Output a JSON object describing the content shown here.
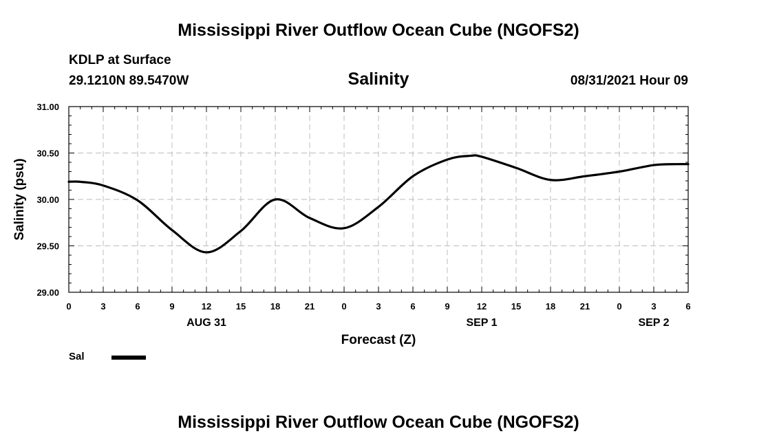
{
  "header": {
    "title": "Mississippi River Outflow Ocean Cube (NGOFS2)",
    "station": "KDLP at Surface",
    "coords": "29.1210N  89.5470W",
    "subtitle": "Salinity",
    "datetime": "08/31/2021 Hour 09"
  },
  "footer": {
    "title": "Mississippi River Outflow Ocean Cube (NGOFS2)"
  },
  "chart_data": {
    "type": "line",
    "title": "Salinity",
    "xlabel": "Forecast (Z)",
    "ylabel": "Salinity (psu)",
    "xlim": [
      0,
      54
    ],
    "ylim": [
      29.0,
      31.0
    ],
    "grid": true,
    "yticks": [
      29.0,
      29.5,
      30.0,
      30.5,
      31.0
    ],
    "ytick_labels": [
      "29.00",
      "29.50",
      "30.00",
      "30.50",
      "31.00"
    ],
    "xticks": [
      0,
      3,
      6,
      9,
      12,
      15,
      18,
      21,
      24,
      27,
      30,
      33,
      36,
      39,
      42,
      45,
      48,
      51,
      54
    ],
    "xtick_labels": [
      "0",
      "3",
      "6",
      "9",
      "12",
      "15",
      "18",
      "21",
      "0",
      "3",
      "6",
      "9",
      "12",
      "15",
      "18",
      "21",
      "0",
      "3",
      "6"
    ],
    "date_labels": [
      {
        "x": 12,
        "label": "AUG 31"
      },
      {
        "x": 36,
        "label": "SEP 1"
      },
      {
        "x": 51,
        "label": "SEP 2"
      }
    ],
    "series": [
      {
        "name": "Sal",
        "color": "#000000",
        "x": [
          0,
          1,
          3,
          6,
          9,
          12,
          15,
          18,
          21,
          24,
          27,
          30,
          33,
          35,
          36,
          39,
          42,
          45,
          48,
          51,
          53,
          54
        ],
        "values": [
          30.19,
          30.19,
          30.15,
          29.99,
          29.67,
          29.43,
          29.66,
          30.0,
          29.8,
          29.69,
          29.92,
          30.25,
          30.43,
          30.47,
          30.46,
          30.34,
          30.21,
          30.25,
          30.3,
          30.37,
          30.38,
          30.38
        ]
      }
    ],
    "legend": [
      {
        "label": "Sal",
        "position": "bottom-left"
      }
    ]
  }
}
